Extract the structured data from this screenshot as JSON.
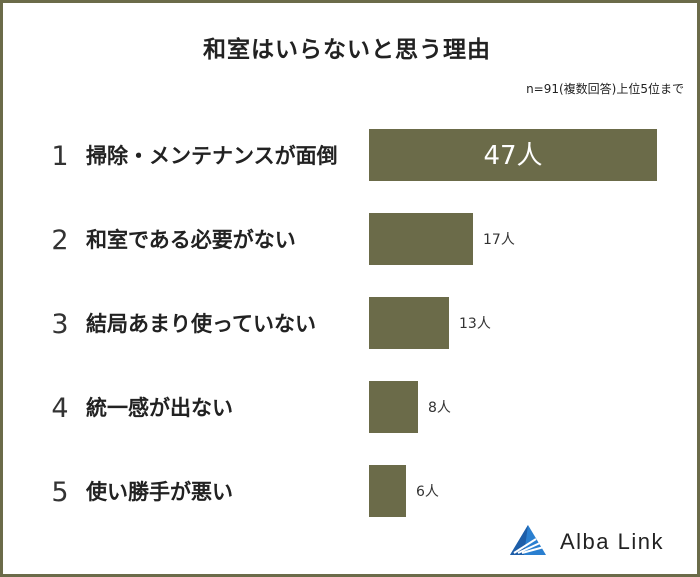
{
  "title": "和室はいらないと思う理由",
  "note": "n=91(複数回答)上位5位まで",
  "chart_data": {
    "type": "bar",
    "orientation": "horizontal",
    "categories": [
      "掃除・メンテナンスが面倒",
      "和室である必要がない",
      "結局あまり使っていない",
      "統一感が出ない",
      "使い勝手が悪い"
    ],
    "ranks": [
      "1",
      "2",
      "3",
      "4",
      "5"
    ],
    "values": [
      47,
      17,
      13,
      8,
      6
    ],
    "value_labels": [
      "47人",
      "17人",
      "13人",
      "8人",
      "6人"
    ],
    "xlim": [
      0,
      47
    ],
    "bar_color": "#6b6b49"
  },
  "logo": {
    "text": "Alba Link"
  }
}
